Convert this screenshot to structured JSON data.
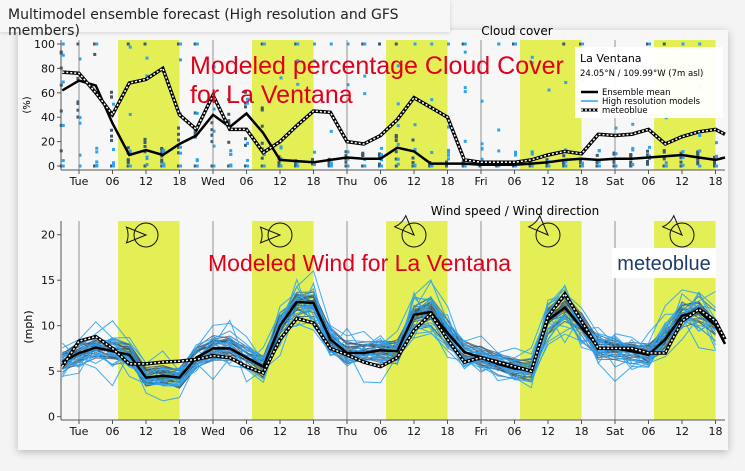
{
  "header": {
    "title": "Multimodel ensemble forecast (High resolution and GFS members)"
  },
  "location": {
    "name": "La Ventana",
    "coords": "24.05°N / 109.99°W (7m asl)"
  },
  "legend": {
    "mean": "Ensemble mean",
    "hires": "High resolution models",
    "mb": "meteoblue"
  },
  "logo": "meteoblue",
  "annotations": {
    "cloud_line1": "Modeled percentage Cloud Cover",
    "cloud_line2": "for La Ventana",
    "wind": "Modeled Wind for La Ventana"
  },
  "colors": {
    "daylight": "#e3ef55",
    "mean": "#000000",
    "hires": "#2ea3f2",
    "gfs": "#3d5a6e",
    "annotation": "#e0001a",
    "logo": "#1f3b6b"
  },
  "chart_data": [
    {
      "type": "scatter",
      "title": "Cloud cover",
      "ylabel": "(%)",
      "ylim": [
        0,
        100
      ],
      "yticks": [
        "0",
        "20",
        "40",
        "60",
        "80",
        "100"
      ],
      "xticks": [
        "Tue",
        "06",
        "12",
        "18",
        "Wed",
        "06",
        "12",
        "18",
        "Thu",
        "06",
        "12",
        "18",
        "Fri",
        "06",
        "12",
        "18",
        "Sat",
        "06",
        "12",
        "18"
      ],
      "xrange_hours_from_tue_00": [
        -3.2,
        115.7
      ],
      "daylight_hours": [
        [
          7,
          18
        ],
        [
          31,
          42
        ],
        [
          55,
          66
        ],
        [
          79,
          90
        ],
        [
          103,
          114
        ]
      ],
      "x_hours": [
        -3,
        0,
        3,
        6,
        9,
        12,
        15,
        18,
        21,
        24,
        27,
        30,
        33,
        36,
        39,
        42,
        45,
        48,
        51,
        54,
        57,
        60,
        63,
        66,
        69,
        72,
        75,
        78,
        81,
        84,
        87,
        90,
        93,
        96,
        99,
        102,
        105,
        108,
        111,
        114,
        115.7
      ],
      "series": [
        {
          "name": "Ensemble mean",
          "values": [
            62,
            70,
            66,
            35,
            9,
            13,
            9,
            18,
            25,
            42,
            32,
            43,
            27,
            5,
            4,
            3,
            5,
            7,
            6,
            6,
            15,
            12,
            2,
            2,
            2,
            1,
            1,
            1,
            2,
            3,
            5,
            6,
            5,
            6,
            6,
            7,
            8,
            9,
            7,
            5,
            7
          ]
        },
        {
          "name": "meteoblue",
          "values": [
            77,
            76,
            60,
            42,
            68,
            71,
            80,
            42,
            30,
            58,
            30,
            30,
            11,
            20,
            33,
            45,
            44,
            20,
            18,
            25,
            38,
            56,
            48,
            40,
            5,
            3,
            3,
            3,
            5,
            9,
            12,
            10,
            26,
            25,
            26,
            30,
            18,
            24,
            28,
            30,
            26
          ]
        }
      ]
    },
    {
      "type": "line",
      "title": "Wind speed / Wind direction",
      "ylabel": "(mph)",
      "ylim": [
        0,
        21.5
      ],
      "yticks": [
        "0",
        "5",
        "10",
        "15",
        "20"
      ],
      "xticks": [
        "Tue",
        "06",
        "12",
        "18",
        "Wed",
        "06",
        "12",
        "18",
        "Thu",
        "06",
        "12",
        "18",
        "Fri",
        "06",
        "12",
        "18",
        "Sat",
        "06",
        "12",
        "18"
      ],
      "xrange_hours_from_tue_00": [
        -3.2,
        115.7
      ],
      "daylight_hours": [
        [
          7,
          18
        ],
        [
          31,
          42
        ],
        [
          55,
          66
        ],
        [
          79,
          90
        ],
        [
          103,
          114
        ]
      ],
      "wind_direction_icons": [
        {
          "hour": 12,
          "from": "W"
        },
        {
          "hour": 36,
          "from": "W"
        },
        {
          "hour": 60,
          "from": "NW"
        },
        {
          "hour": 84,
          "from": "NW"
        },
        {
          "hour": 108,
          "from": "NW"
        }
      ],
      "x_hours": [
        -3,
        0,
        3,
        6,
        9,
        12,
        15,
        18,
        21,
        24,
        27,
        30,
        33,
        36,
        39,
        42,
        45,
        48,
        51,
        54,
        57,
        60,
        63,
        66,
        69,
        72,
        75,
        78,
        81,
        84,
        87,
        90,
        93,
        96,
        99,
        102,
        105,
        108,
        111,
        114,
        115.7
      ],
      "series": [
        {
          "name": "Ensemble mean",
          "values": [
            6,
            7,
            7.6,
            7.2,
            6.8,
            4.3,
            4.5,
            4.3,
            6.5,
            7.5,
            7.5,
            6.5,
            5.5,
            10,
            12.6,
            12.5,
            8.5,
            7,
            7,
            7.3,
            7.2,
            11.2,
            11.5,
            9.2,
            7.1,
            6.5,
            5.8,
            5.3,
            5.1,
            10.6,
            12,
            9.8,
            7.6,
            7.5,
            7.2,
            6.8,
            8.5,
            11.1,
            11.6,
            10,
            8
          ]
        },
        {
          "name": "meteoblue",
          "values": [
            5.5,
            8.3,
            8.8,
            7.5,
            5.8,
            5.8,
            6,
            6.1,
            6.3,
            6.7,
            6.5,
            5.5,
            4.8,
            8.5,
            10.8,
            10.3,
            7.5,
            6.8,
            6,
            5.5,
            6.5,
            9.5,
            11.3,
            8.5,
            6,
            6.5,
            6,
            5.5,
            5,
            11,
            13.5,
            10.5,
            7.5,
            7.5,
            7.5,
            7,
            7,
            10.5,
            11.8,
            10.5,
            8.5
          ]
        }
      ]
    }
  ]
}
